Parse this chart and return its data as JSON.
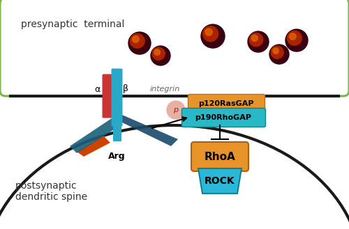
{
  "bg_color": "#f2f2f2",
  "presynaptic_border": "#7ab648",
  "presynaptic_label": "presynaptic  terminal",
  "postsynaptic_label": "postsynaptic\ndendritic spine",
  "integrin_label": "integrin",
  "alpha_label": "α",
  "beta_label": "β",
  "arg_label": "Arg",
  "p190_label": "p190RhoGAP",
  "p120_label": "p120RasGAP",
  "rhoa_label": "RhoA",
  "rock_label": "ROCK",
  "p_label": "p",
  "alpha_color": "#cc3333",
  "beta_color": "#29a8c8",
  "arg_body_color": "#29a8c8",
  "p190_color": "#29b8c8",
  "p120_color": "#e8922a",
  "rhoa_color": "#e8922a",
  "rock_color": "#29b8d8",
  "p_circle_color": "#e8b0a0",
  "vesicle_dark": "#3a0010",
  "vesicle_mid": "#aa2200",
  "vesicle_orange": "#dd6600",
  "membrane_color": "#1a1a1a",
  "text_color": "#333333",
  "white": "#ffffff"
}
